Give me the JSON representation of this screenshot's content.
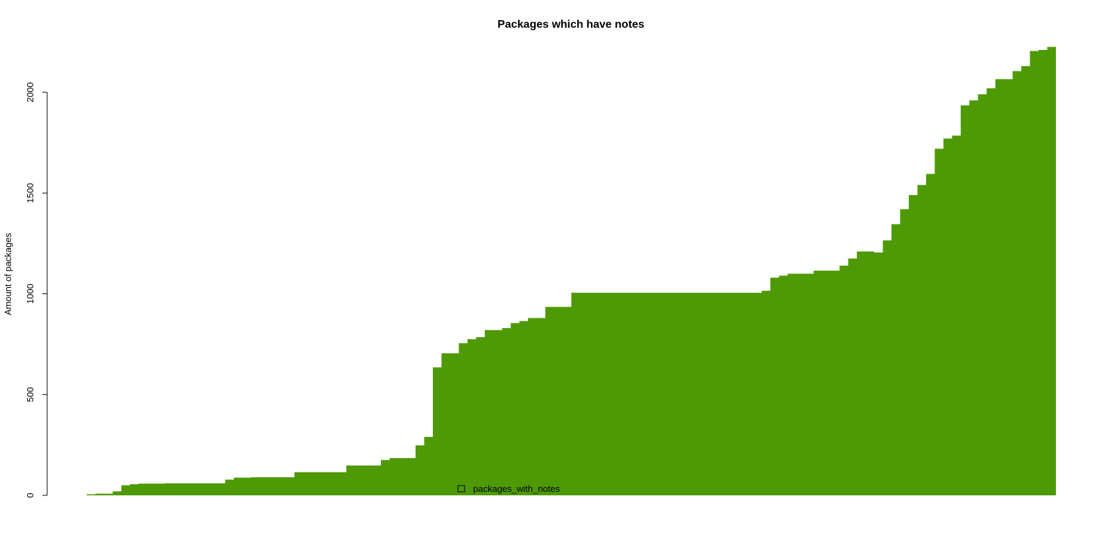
{
  "chart_data": {
    "type": "area",
    "title": "Packages which have notes",
    "xlabel": "",
    "ylabel": "Amount of packages",
    "ylim": [
      0,
      2230
    ],
    "yticks": [
      0,
      500,
      1000,
      1500,
      2000
    ],
    "grid": false,
    "legend_position": "bottom-center",
    "fill_color": "#4e9a06",
    "series": [
      {
        "name": "packages_with_notes",
        "values": [
          5,
          8,
          8,
          20,
          50,
          55,
          58,
          58,
          58,
          60,
          60,
          60,
          60,
          60,
          60,
          60,
          78,
          88,
          88,
          90,
          90,
          90,
          90,
          90,
          115,
          115,
          115,
          115,
          115,
          115,
          148,
          148,
          148,
          148,
          175,
          185,
          185,
          185,
          248,
          290,
          635,
          705,
          705,
          755,
          775,
          785,
          820,
          820,
          830,
          855,
          865,
          880,
          880,
          935,
          935,
          935,
          1005,
          1005,
          1005,
          1005,
          1005,
          1005,
          1005,
          1005,
          1005,
          1005,
          1005,
          1005,
          1005,
          1005,
          1005,
          1005,
          1005,
          1005,
          1005,
          1005,
          1005,
          1005,
          1015,
          1080,
          1090,
          1100,
          1100,
          1100,
          1115,
          1115,
          1115,
          1140,
          1175,
          1210,
          1210,
          1205,
          1265,
          1345,
          1420,
          1490,
          1540,
          1595,
          1720,
          1770,
          1785,
          1935,
          1960,
          1990,
          2020,
          2065,
          2065,
          2105,
          2130,
          2205,
          2210,
          2225
        ]
      }
    ]
  }
}
